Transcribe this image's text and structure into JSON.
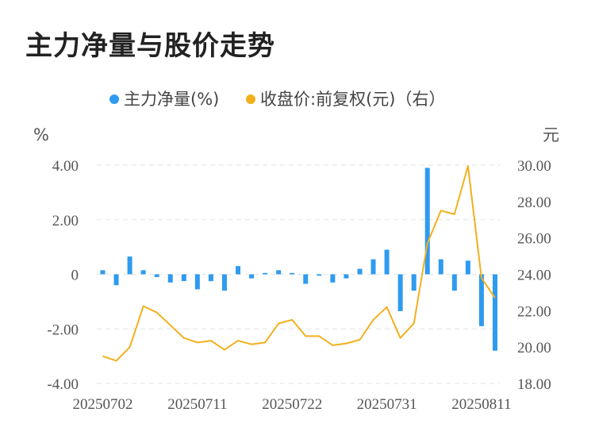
{
  "title": "主力净量与股价走势",
  "chart_data": {
    "type": "bar+line",
    "legend": [
      {
        "name": "主力净量(%)",
        "color": "#2e9bf0"
      },
      {
        "name": "收盘价:前复权(元)（右）",
        "color": "#f2b01e"
      }
    ],
    "left_axis": {
      "unit": "%",
      "min": -4,
      "max": 4,
      "ticks": [
        "4.00",
        "2.00",
        "0",
        "-2.00",
        "-4.00"
      ]
    },
    "right_axis": {
      "unit": "元",
      "min": 18,
      "max": 30,
      "ticks": [
        "30.00",
        "28.00",
        "26.00",
        "24.00",
        "22.00",
        "20.00",
        "18.00"
      ]
    },
    "x_tick_labels": [
      "20250702",
      "20250711",
      "20250722",
      "20250731",
      "20250811"
    ],
    "x_tick_indices": [
      0,
      7,
      14,
      21,
      28
    ],
    "series": [
      {
        "name": "主力净量(%)",
        "type": "bar",
        "values": [
          0.15,
          -0.4,
          0.65,
          0.15,
          -0.1,
          -0.3,
          -0.25,
          -0.55,
          -0.25,
          -0.6,
          0.3,
          -0.15,
          0.05,
          0.15,
          0.05,
          -0.35,
          -0.05,
          -0.3,
          -0.15,
          0.2,
          0.55,
          0.9,
          -1.35,
          -0.6,
          3.9,
          0.55,
          -0.6,
          0.5,
          -1.9,
          -2.8
        ]
      },
      {
        "name": "收盘价:前复权(元)（右）",
        "type": "line",
        "values": [
          19.5,
          19.25,
          20.0,
          22.25,
          21.9,
          21.2,
          20.5,
          20.25,
          20.35,
          19.85,
          20.35,
          20.15,
          20.25,
          21.3,
          21.5,
          20.6,
          20.6,
          20.1,
          20.2,
          20.4,
          21.5,
          22.2,
          20.5,
          21.3,
          25.7,
          27.5,
          27.3,
          29.95,
          23.8,
          22.7
        ]
      }
    ],
    "grid": "horizontal-dashed"
  }
}
